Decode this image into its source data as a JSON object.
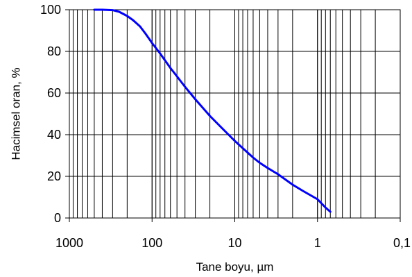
{
  "chart_data": {
    "type": "line",
    "xlabel": "Tane boyu, µm",
    "ylabel": "Hacimsel oran, %",
    "x_scale": "log",
    "x_reversed": true,
    "xlim": [
      1000,
      0.1
    ],
    "ylim": [
      0,
      100
    ],
    "x_ticks": [
      1000,
      100,
      10,
      1,
      0.1
    ],
    "x_tick_labels": [
      "1000",
      "100",
      "10",
      "1",
      "0,1"
    ],
    "y_ticks": [
      0,
      20,
      40,
      60,
      80,
      100
    ],
    "y_tick_labels": [
      "0",
      "20",
      "40",
      "60",
      "80",
      "100"
    ],
    "grid": true,
    "series": [
      {
        "color": "#0000ff",
        "x": [
          500,
          400,
          300,
          250,
          200,
          170,
          140,
          120,
          100,
          80,
          60,
          50,
          40,
          30,
          20,
          15,
          10,
          8,
          6,
          5,
          4,
          3,
          2,
          1.5,
          1,
          0.8,
          0.7
        ],
        "y": [
          100,
          100,
          99.8,
          99,
          97,
          95,
          92,
          88.5,
          84,
          79,
          72,
          68,
          63,
          57,
          49,
          44,
          37,
          33.5,
          29,
          26.5,
          24,
          21,
          16,
          13,
          9,
          5,
          3
        ]
      }
    ]
  }
}
